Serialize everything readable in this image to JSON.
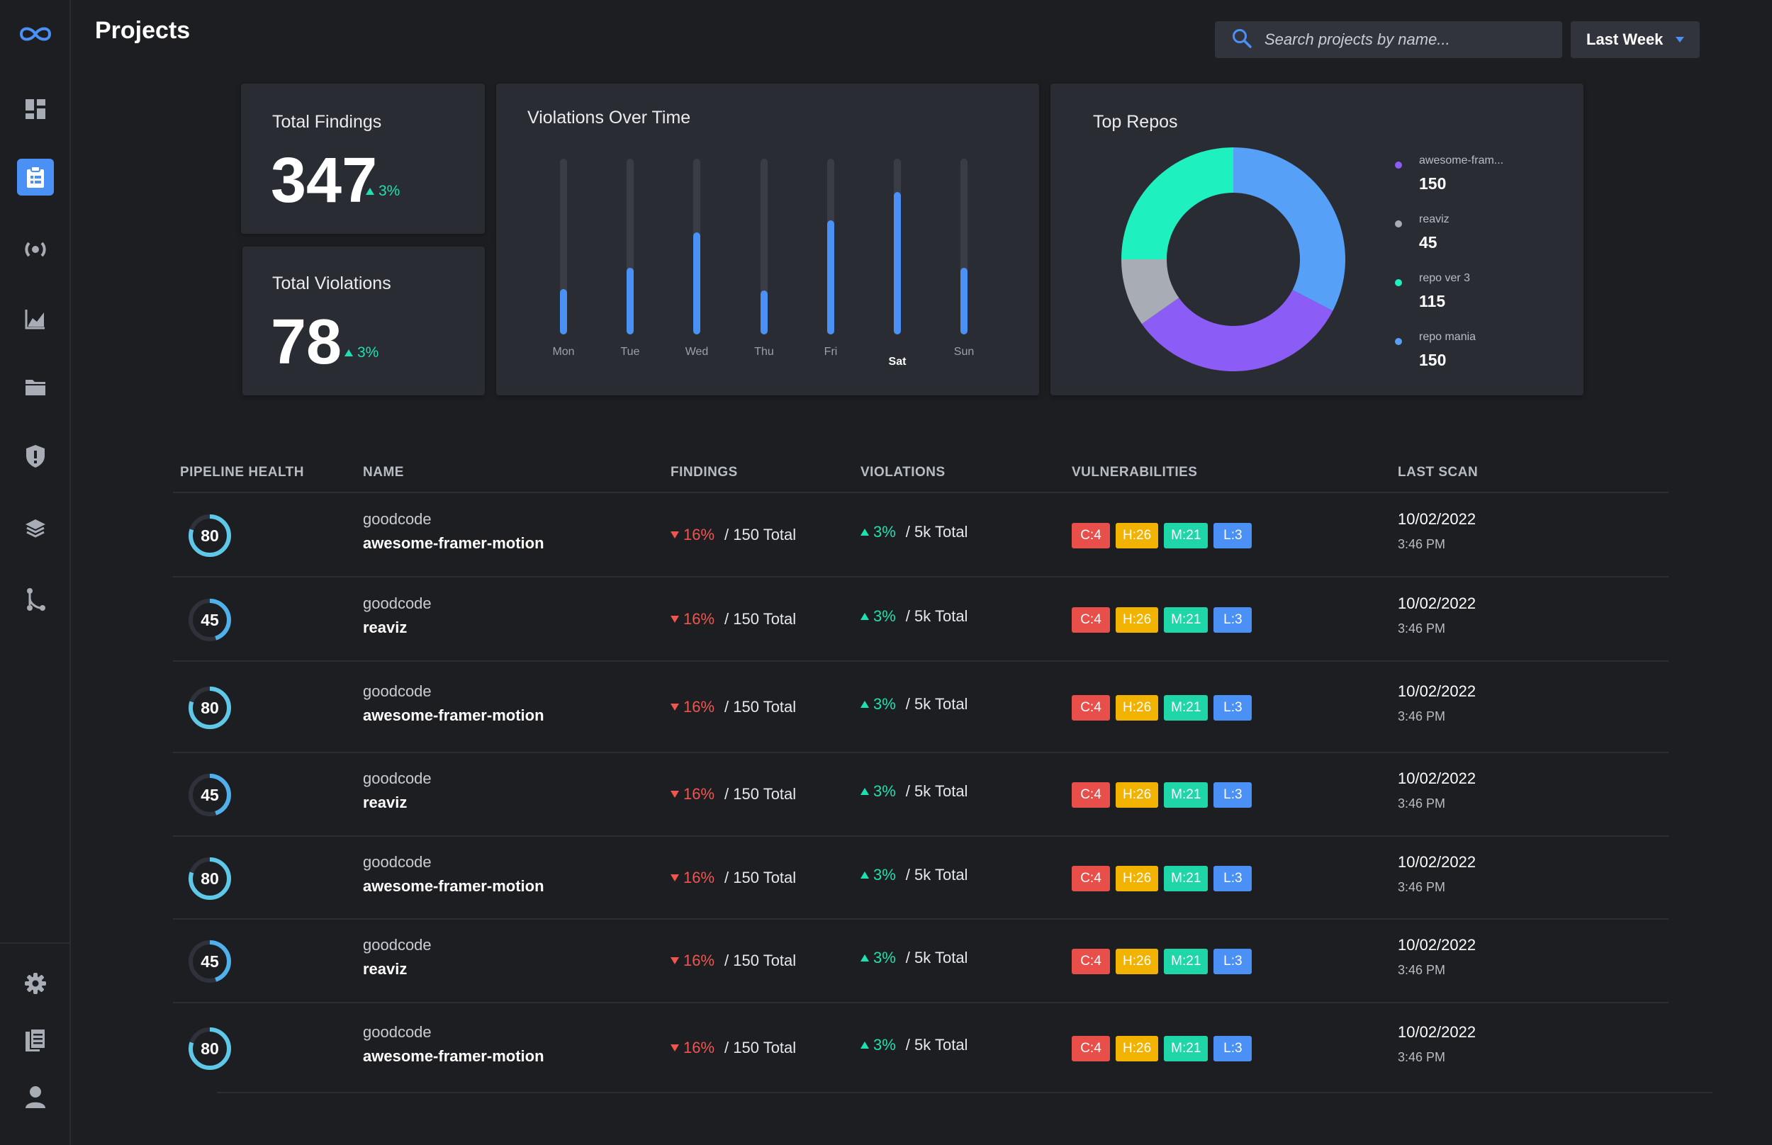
{
  "page": {
    "title": "Projects"
  },
  "search": {
    "placeholder": "Search projects by name..."
  },
  "range": {
    "selected": "Last Week"
  },
  "sidebar": {
    "items": [
      {
        "name": "dashboard-icon",
        "active": false
      },
      {
        "name": "clipboard-icon",
        "active": true
      },
      {
        "name": "broadcast-icon",
        "active": false
      },
      {
        "name": "chart-icon",
        "active": false
      },
      {
        "name": "folder-icon",
        "active": false
      },
      {
        "name": "shield-icon",
        "active": false
      },
      {
        "name": "layers-icon",
        "active": false
      },
      {
        "name": "branch-icon",
        "active": false
      }
    ],
    "bottom_items": [
      {
        "name": "gear-icon"
      },
      {
        "name": "document-icon"
      },
      {
        "name": "user-icon"
      }
    ]
  },
  "stats": {
    "findings": {
      "label": "Total Findings",
      "value": "347",
      "delta": "3%"
    },
    "violations": {
      "label": "Total Violations",
      "value": "78",
      "delta": "3%"
    }
  },
  "violations_chart": {
    "title": "Violations Over Time",
    "chart_data": {
      "type": "bar",
      "categories": [
        "Mon",
        "Tue",
        "Wed",
        "Thu",
        "Fri",
        "Sat",
        "Sun"
      ],
      "values": [
        26,
        38,
        58,
        25,
        65,
        81,
        38
      ],
      "ylim": [
        0,
        100
      ],
      "highlighted": "Sat",
      "color": "#4a90f5"
    }
  },
  "repos_chart": {
    "title": "Top Repos",
    "chart_data": {
      "type": "pie",
      "donut": true,
      "labels": [
        "awesome-fram...",
        "reaviz",
        "repo ver 3",
        "repo mania"
      ],
      "values": [
        150,
        45,
        115,
        150
      ],
      "colors": [
        "#8b5cf6",
        "#a8acb4",
        "#1ff0c0",
        "#57a0f7"
      ]
    }
  },
  "table": {
    "headers": {
      "health": "PIPELINE HEALTH",
      "name": "NAME",
      "findings": "FINDINGS",
      "violations": "VIOLATIONS",
      "vulnerabilities": "VULNERABILITIES",
      "last_scan": "LAST SCAN"
    },
    "rows": [
      {
        "health": 80,
        "org": "goodcode",
        "repo": "awesome-framer-motion",
        "findings_pct": "16%",
        "findings_total": "/ 150 Total",
        "violations_pct": "3%",
        "violations_total": "/ 5k Total",
        "vulns": [
          "C:4",
          "H:26",
          "M:21",
          "L:3"
        ],
        "date": "10/02/2022",
        "time": "3:46 PM"
      },
      {
        "health": 45,
        "org": "goodcode",
        "repo": "reaviz",
        "findings_pct": "16%",
        "findings_total": "/ 150 Total",
        "violations_pct": "3%",
        "violations_total": "/ 5k Total",
        "vulns": [
          "C:4",
          "H:26",
          "M:21",
          "L:3"
        ],
        "date": "10/02/2022",
        "time": "3:46 PM"
      },
      {
        "health": 80,
        "org": "goodcode",
        "repo": "awesome-framer-motion",
        "findings_pct": "16%",
        "findings_total": "/ 150 Total",
        "violations_pct": "3%",
        "violations_total": "/ 5k Total",
        "vulns": [
          "C:4",
          "H:26",
          "M:21",
          "L:3"
        ],
        "date": "10/02/2022",
        "time": "3:46 PM"
      },
      {
        "health": 45,
        "org": "goodcode",
        "repo": "reaviz",
        "findings_pct": "16%",
        "findings_total": "/ 150 Total",
        "violations_pct": "3%",
        "violations_total": "/ 5k Total",
        "vulns": [
          "C:4",
          "H:26",
          "M:21",
          "L:3"
        ],
        "date": "10/02/2022",
        "time": "3:46 PM"
      },
      {
        "health": 80,
        "org": "goodcode",
        "repo": "awesome-framer-motion",
        "findings_pct": "16%",
        "findings_total": "/ 150 Total",
        "violations_pct": "3%",
        "violations_total": "/ 5k Total",
        "vulns": [
          "C:4",
          "H:26",
          "M:21",
          "L:3"
        ],
        "date": "10/02/2022",
        "time": "3:46 PM"
      },
      {
        "health": 45,
        "org": "goodcode",
        "repo": "reaviz",
        "findings_pct": "16%",
        "findings_total": "/ 150 Total",
        "violations_pct": "3%",
        "violations_total": "/ 5k Total",
        "vulns": [
          "C:4",
          "H:26",
          "M:21",
          "L:3"
        ],
        "date": "10/02/2022",
        "time": "3:46 PM"
      },
      {
        "health": 80,
        "org": "goodcode",
        "repo": "awesome-framer-motion",
        "findings_pct": "16%",
        "findings_total": "/ 150 Total",
        "violations_pct": "3%",
        "violations_total": "/ 5k Total",
        "vulns": [
          "C:4",
          "H:26",
          "M:21",
          "L:3"
        ],
        "date": "10/02/2022",
        "time": "3:46 PM"
      }
    ]
  },
  "colors": {
    "accent": "#4a90f5",
    "up": "#1fe0b0",
    "down": "#f0554f",
    "critical": "#e84e4a",
    "high": "#f2b200",
    "medium": "#1fd6a8",
    "low": "#4a90f5"
  }
}
